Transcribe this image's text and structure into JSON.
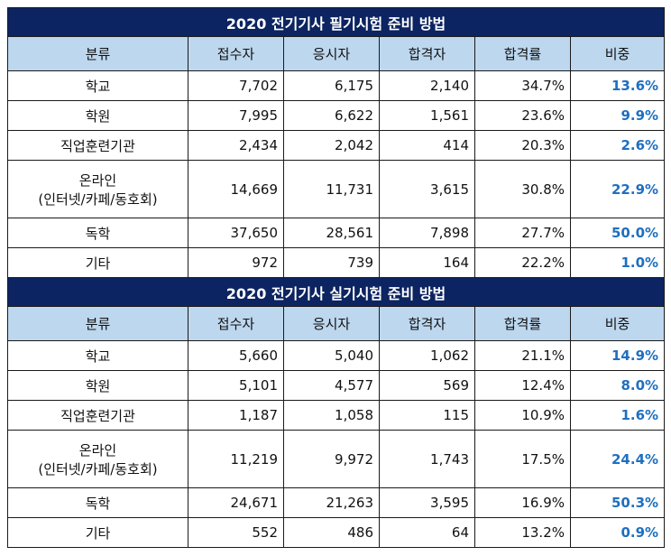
{
  "headers": [
    "분류",
    "접수자",
    "응시자",
    "합격자",
    "합격률",
    "비중"
  ],
  "tables": [
    {
      "title": "2020 전기기사 필기시험 준비 방법",
      "rows": [
        {
          "cat": [
            "학교"
          ],
          "applicants": "7,702",
          "examinees": "6,175",
          "passers": "2,140",
          "rate": "34.7%",
          "share": "13.6%"
        },
        {
          "cat": [
            "학원"
          ],
          "applicants": "7,995",
          "examinees": "6,622",
          "passers": "1,561",
          "rate": "23.6%",
          "share": "9.9%"
        },
        {
          "cat": [
            "직업훈련기관"
          ],
          "applicants": "2,434",
          "examinees": "2,042",
          "passers": "414",
          "rate": "20.3%",
          "share": "2.6%"
        },
        {
          "cat": [
            "온라인",
            "(인터넷/카페/동호회)"
          ],
          "applicants": "14,669",
          "examinees": "11,731",
          "passers": "3,615",
          "rate": "30.8%",
          "share": "22.9%"
        },
        {
          "cat": [
            "독학"
          ],
          "applicants": "37,650",
          "examinees": "28,561",
          "passers": "7,898",
          "rate": "27.7%",
          "share": "50.0%"
        },
        {
          "cat": [
            "기타"
          ],
          "applicants": "972",
          "examinees": "739",
          "passers": "164",
          "rate": "22.2%",
          "share": "1.0%"
        }
      ]
    },
    {
      "title": "2020 전기기사 실기시험 준비 방법",
      "rows": [
        {
          "cat": [
            "학교"
          ],
          "applicants": "5,660",
          "examinees": "5,040",
          "passers": "1,062",
          "rate": "21.1%",
          "share": "14.9%"
        },
        {
          "cat": [
            "학원"
          ],
          "applicants": "5,101",
          "examinees": "4,577",
          "passers": "569",
          "rate": "12.4%",
          "share": "8.0%"
        },
        {
          "cat": [
            "직업훈련기관"
          ],
          "applicants": "1,187",
          "examinees": "1,058",
          "passers": "115",
          "rate": "10.9%",
          "share": "1.6%"
        },
        {
          "cat": [
            "온라인",
            "(인터넷/카페/동호회)"
          ],
          "applicants": "11,219",
          "examinees": "9,972",
          "passers": "1,743",
          "rate": "17.5%",
          "share": "24.4%"
        },
        {
          "cat": [
            "독학"
          ],
          "applicants": "24,671",
          "examinees": "21,263",
          "passers": "3,595",
          "rate": "16.9%",
          "share": "50.3%"
        },
        {
          "cat": [
            "기타"
          ],
          "applicants": "552",
          "examinees": "486",
          "passers": "64",
          "rate": "13.2%",
          "share": "0.9%"
        }
      ]
    }
  ],
  "colors": {
    "title_bg": "#0c2461",
    "header_bg": "#bdd7ee",
    "share_text": "#1f6fc0"
  }
}
